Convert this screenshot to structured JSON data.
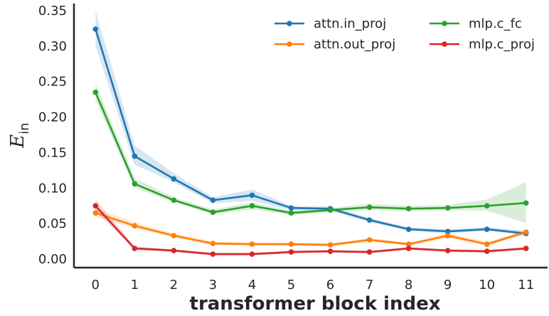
{
  "chart_data": {
    "type": "line",
    "x": [
      0,
      1,
      2,
      3,
      4,
      5,
      6,
      7,
      8,
      9,
      10,
      11
    ],
    "xlabel": "transformer block index",
    "ylabel": {
      "main": "E",
      "sub": "in"
    },
    "xlim": [
      -0.55,
      11.55
    ],
    "ylim": [
      -0.012,
      0.36
    ],
    "yticks": [
      0.0,
      0.05,
      0.1,
      0.15,
      0.2,
      0.25,
      0.3,
      0.35
    ],
    "ytick_labels": [
      "0.00",
      "0.05",
      "0.10",
      "0.15",
      "0.20",
      "0.25",
      "0.30",
      "0.35"
    ],
    "xticks": [
      0,
      1,
      2,
      3,
      4,
      5,
      6,
      7,
      8,
      9,
      10,
      11
    ],
    "xtick_labels": [
      "0",
      "1",
      "2",
      "3",
      "4",
      "5",
      "6",
      "7",
      "8",
      "9",
      "10",
      "11"
    ],
    "legend": {
      "placement": "top-right",
      "columns": 2
    },
    "series": [
      {
        "name": "attn.in_proj",
        "color": "#1f77b4",
        "values": [
          0.324,
          0.145,
          0.113,
          0.083,
          0.09,
          0.072,
          0.071,
          0.055,
          0.042,
          0.039,
          0.042,
          0.036
        ],
        "band_lower": [
          0.3,
          0.133,
          0.108,
          0.079,
          0.082,
          0.069,
          0.068,
          0.052,
          0.04,
          0.036,
          0.04,
          0.033
        ],
        "band_upper": [
          0.35,
          0.16,
          0.121,
          0.087,
          0.098,
          0.075,
          0.074,
          0.058,
          0.045,
          0.042,
          0.045,
          0.04
        ]
      },
      {
        "name": "attn.out_proj",
        "color": "#ff7f0e",
        "values": [
          0.065,
          0.047,
          0.033,
          0.022,
          0.021,
          0.021,
          0.02,
          0.027,
          0.021,
          0.033,
          0.021,
          0.038
        ],
        "band_lower": [
          0.06,
          0.043,
          0.03,
          0.019,
          0.019,
          0.019,
          0.018,
          0.024,
          0.019,
          0.029,
          0.019,
          0.034
        ],
        "band_upper": [
          0.071,
          0.052,
          0.036,
          0.025,
          0.023,
          0.023,
          0.022,
          0.03,
          0.023,
          0.037,
          0.024,
          0.042
        ]
      },
      {
        "name": "mlp.c_fc",
        "color": "#2ca02c",
        "values": [
          0.235,
          0.106,
          0.083,
          0.066,
          0.075,
          0.065,
          0.069,
          0.073,
          0.071,
          0.072,
          0.075,
          0.079
        ],
        "band_lower": [
          0.224,
          0.1,
          0.08,
          0.063,
          0.07,
          0.062,
          0.066,
          0.069,
          0.068,
          0.069,
          0.068,
          0.051
        ],
        "band_upper": [
          0.247,
          0.114,
          0.087,
          0.07,
          0.08,
          0.068,
          0.072,
          0.078,
          0.075,
          0.076,
          0.084,
          0.108
        ]
      },
      {
        "name": "mlp.c_proj",
        "color": "#d62728",
        "values": [
          0.075,
          0.015,
          0.012,
          0.007,
          0.007,
          0.01,
          0.011,
          0.01,
          0.015,
          0.012,
          0.011,
          0.015
        ],
        "band_lower": [
          0.068,
          0.013,
          0.01,
          0.005,
          0.005,
          0.008,
          0.009,
          0.008,
          0.013,
          0.01,
          0.009,
          0.013
        ],
        "band_upper": [
          0.084,
          0.018,
          0.014,
          0.009,
          0.009,
          0.012,
          0.013,
          0.012,
          0.017,
          0.014,
          0.013,
          0.017
        ]
      }
    ]
  }
}
